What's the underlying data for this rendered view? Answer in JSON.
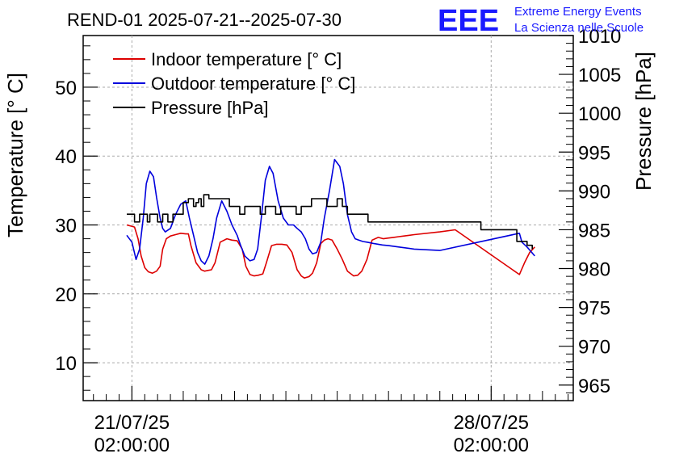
{
  "chart_data": {
    "type": "line",
    "title": "REND-01 2025-07-21--2025-07-30",
    "ylabel": "Temperature [° C]",
    "y2label": "Pressure [hPa]",
    "xlabel": "",
    "ylim": [
      4.5,
      57.5
    ],
    "y2lim": [
      963.0,
      1010.0
    ],
    "yticks": [
      10,
      20,
      30,
      40,
      50
    ],
    "y2ticks": [
      965,
      970,
      975,
      980,
      985,
      990,
      995,
      1000,
      1005,
      1010
    ],
    "xlim": [
      -0.95,
      8.6
    ],
    "xticks": [
      {
        "x": 0,
        "label": [
          "21/07/25",
          "02:00:00"
        ]
      },
      {
        "x": 7,
        "label": [
          "28/07/25",
          "02:00:00"
        ]
      }
    ],
    "grid": true,
    "legend": "top-left",
    "logo": {
      "mark": "EEE",
      "line1": "Extreme Energy Events",
      "line2": "La Scienza nelle Scuole"
    },
    "series": [
      {
        "name": "Indoor temperature [° C]",
        "color": "#dd0000",
        "axis": "left",
        "x": [
          -0.1,
          0.05,
          0.12,
          0.18,
          0.25,
          0.32,
          0.4,
          0.48,
          0.55,
          0.6,
          0.67,
          0.75,
          0.85,
          0.95,
          1.05,
          1.1,
          1.15,
          1.25,
          1.35,
          1.42,
          1.48,
          1.55,
          1.62,
          1.72,
          1.85,
          1.95,
          2.05,
          2.15,
          2.22,
          2.3,
          2.38,
          2.46,
          2.55,
          2.62,
          2.72,
          2.82,
          2.92,
          3.02,
          3.12,
          3.22,
          3.3,
          3.36,
          3.45,
          3.52,
          3.6,
          3.68,
          3.75,
          3.82,
          3.9,
          4.0,
          4.1,
          4.2,
          4.32,
          4.4,
          4.48,
          4.58,
          4.68,
          4.8,
          4.9,
          5.0,
          5.1,
          5.2,
          5.3,
          5.5,
          6.0,
          6.3,
          7.55,
          7.65,
          7.75,
          7.85
        ],
        "y": [
          30.0,
          29.7,
          28.0,
          25.5,
          23.8,
          23.2,
          23.0,
          23.3,
          24.0,
          26.5,
          28.0,
          28.4,
          28.6,
          28.8,
          28.7,
          28.7,
          27.0,
          24.5,
          23.5,
          23.3,
          23.4,
          23.5,
          24.5,
          27.5,
          28.0,
          27.8,
          27.7,
          26.5,
          24.0,
          22.8,
          22.6,
          22.7,
          22.9,
          24.5,
          27.0,
          27.2,
          27.2,
          27.1,
          26.0,
          23.5,
          22.6,
          22.3,
          22.5,
          23.0,
          24.5,
          27.3,
          27.8,
          28.0,
          27.8,
          26.5,
          25.0,
          23.3,
          22.6,
          22.7,
          23.3,
          25.0,
          27.8,
          28.2,
          28.0,
          28.1,
          28.2,
          28.3,
          28.4,
          28.6,
          29.0,
          29.3,
          22.8,
          24.5,
          26.0,
          26.8
        ]
      },
      {
        "name": "Outdoor temperature [° C]",
        "color": "#0000dd",
        "axis": "left",
        "x": [
          -0.1,
          0.0,
          0.08,
          0.15,
          0.22,
          0.28,
          0.35,
          0.42,
          0.48,
          0.55,
          0.6,
          0.65,
          0.75,
          0.85,
          0.95,
          1.05,
          1.12,
          1.2,
          1.28,
          1.35,
          1.42,
          1.5,
          1.58,
          1.65,
          1.75,
          1.85,
          1.95,
          2.05,
          2.12,
          2.2,
          2.3,
          2.38,
          2.45,
          2.52,
          2.6,
          2.68,
          2.75,
          2.85,
          2.95,
          3.05,
          3.15,
          3.22,
          3.3,
          3.38,
          3.45,
          3.52,
          3.6,
          3.68,
          3.75,
          3.85,
          3.95,
          4.05,
          4.12,
          4.2,
          4.28,
          4.35,
          4.42,
          4.5,
          4.58,
          4.65,
          4.72,
          4.8,
          4.88,
          5.0,
          5.2,
          5.5,
          6.0,
          7.55,
          7.6,
          7.7,
          7.85
        ],
        "y": [
          28.5,
          27.5,
          25.0,
          26.5,
          31.0,
          36.0,
          37.8,
          37.0,
          34.0,
          31.0,
          29.5,
          29.0,
          29.5,
          31.5,
          33.0,
          33.5,
          31.0,
          28.5,
          26.0,
          24.8,
          24.3,
          25.5,
          28.0,
          31.0,
          33.5,
          32.0,
          30.0,
          28.5,
          27.0,
          25.5,
          24.8,
          25.0,
          26.5,
          31.0,
          36.5,
          38.5,
          37.5,
          33.5,
          31.0,
          30.0,
          30.0,
          29.5,
          29.0,
          28.0,
          26.5,
          25.8,
          26.0,
          27.5,
          31.0,
          35.0,
          39.5,
          38.5,
          36.0,
          31.5,
          29.0,
          28.0,
          27.8,
          27.6,
          27.5,
          27.4,
          27.3,
          27.2,
          27.1,
          27.0,
          26.8,
          26.5,
          26.3,
          28.8,
          27.5,
          26.8,
          25.5
        ]
      },
      {
        "name": "Pressure [hPa]",
        "color": "#000000",
        "axis": "right",
        "x": [
          -0.1,
          0.0,
          0.05,
          0.15,
          0.2,
          0.3,
          0.35,
          0.45,
          0.5,
          0.6,
          0.7,
          0.8,
          0.9,
          1.0,
          1.1,
          1.2,
          1.25,
          1.3,
          1.35,
          1.4,
          1.5,
          1.6,
          1.7,
          1.8,
          1.9,
          2.0,
          2.1,
          2.2,
          2.3,
          2.4,
          2.5,
          2.6,
          2.7,
          2.8,
          2.9,
          3.0,
          3.1,
          3.2,
          3.3,
          3.4,
          3.5,
          3.6,
          3.7,
          3.8,
          3.9,
          4.0,
          4.1,
          4.2,
          4.3,
          4.4,
          4.5,
          4.6,
          4.8,
          5.0,
          5.5,
          6.0,
          6.8,
          7.5,
          7.7,
          7.8
        ],
        "y": [
          987.0,
          987.0,
          986.0,
          987.0,
          987.0,
          986.0,
          987.0,
          987.0,
          986.0,
          987.0,
          986.0,
          987.0,
          987.0,
          988.5,
          989.0,
          988.0,
          988.5,
          989.0,
          988.0,
          989.5,
          989.0,
          989.0,
          989.0,
          989.0,
          988.0,
          988.0,
          987.0,
          988.0,
          988.0,
          988.0,
          987.0,
          988.0,
          988.0,
          987.0,
          988.0,
          988.0,
          988.0,
          987.0,
          988.0,
          988.0,
          989.0,
          989.0,
          989.0,
          988.0,
          988.0,
          989.0,
          988.0,
          987.0,
          987.0,
          987.0,
          987.0,
          986.0,
          986.0,
          986.0,
          986.0,
          986.0,
          985.0,
          983.5,
          983.0,
          982.5
        ]
      }
    ]
  }
}
